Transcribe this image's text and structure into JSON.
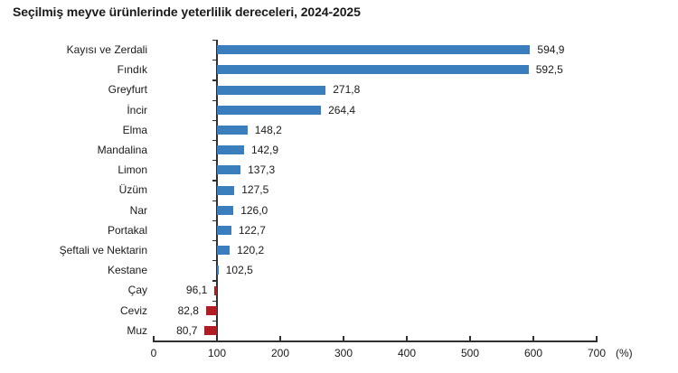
{
  "chart_data": {
    "type": "bar",
    "orientation": "horizontal",
    "title": "Seçilmiş meyve ürünlerinde yeterlilik dereceleri, 2024-2025",
    "categories": [
      "Kayısı ve Zerdali",
      "Fındık",
      "Greyfurt",
      "İncir",
      "Elma",
      "Mandalina",
      "Limon",
      "Üzüm",
      "Nar",
      "Portakal",
      "Şeftali ve Nektarin",
      "Kestane",
      "Çay",
      "Ceviz",
      "Muz"
    ],
    "values": [
      594.9,
      592.5,
      271.8,
      264.4,
      148.2,
      142.9,
      137.3,
      127.5,
      126.0,
      122.7,
      120.2,
      102.5,
      96.1,
      82.8,
      80.7
    ],
    "value_labels": [
      "594,9",
      "592,5",
      "271,8",
      "264,4",
      "148,2",
      "142,9",
      "137,3",
      "127,5",
      "126,0",
      "122,7",
      "120,2",
      "102,5",
      "96,1",
      "82,8",
      "80,7"
    ],
    "bar_anchor": 100,
    "xlim": [
      0,
      700
    ],
    "x_ticks": [
      "0",
      "100",
      "200",
      "300",
      "400",
      "500",
      "600",
      "700"
    ],
    "x_unit_label": "(%)",
    "grid": false,
    "legend": "none",
    "colors": {
      "above_anchor": "#3a7ebd",
      "below_anchor": "#b01d25",
      "axis": "#2f2f2f",
      "text": "#1a1a1a"
    }
  }
}
